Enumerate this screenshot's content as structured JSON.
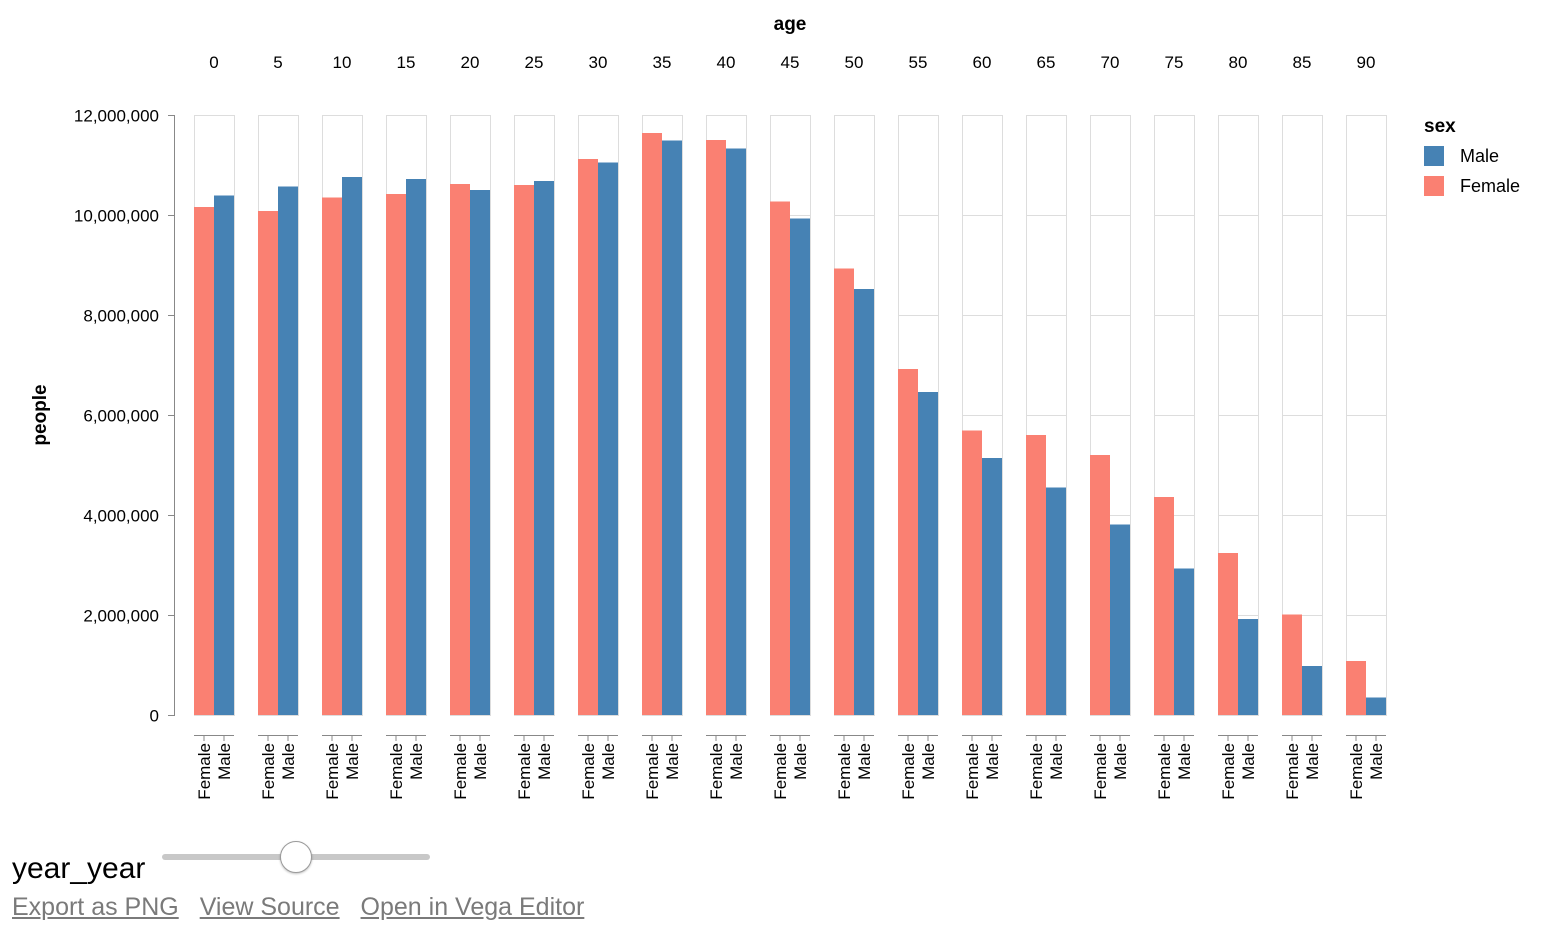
{
  "chart_data": {
    "type": "bar",
    "column_title": "age",
    "categories": [
      "0",
      "5",
      "10",
      "15",
      "20",
      "25",
      "30",
      "35",
      "40",
      "45",
      "50",
      "55",
      "60",
      "65",
      "70",
      "75",
      "80",
      "85",
      "90"
    ],
    "ylabel": "people",
    "ylim": [
      0,
      12000000
    ],
    "yticks": [
      0,
      2000000,
      4000000,
      6000000,
      8000000,
      10000000,
      12000000
    ],
    "grid": true,
    "subgroup_order": [
      "Female",
      "Male"
    ],
    "series": [
      {
        "name": "Female",
        "color": "#fa8072",
        "values": [
          10160000,
          10080000,
          10350000,
          10420000,
          10620000,
          10600000,
          11120000,
          11640000,
          11500000,
          10270000,
          8930000,
          6920000,
          5690000,
          5600000,
          5200000,
          4360000,
          3240000,
          2010000,
          1080000
        ]
      },
      {
        "name": "Male",
        "color": "#4682b4",
        "values": [
          10390000,
          10570000,
          10760000,
          10720000,
          10500000,
          10680000,
          11050000,
          11490000,
          11330000,
          9930000,
          8520000,
          6460000,
          5140000,
          4550000,
          3810000,
          2930000,
          1920000,
          980000,
          350000
        ]
      }
    ],
    "legend": {
      "title": "sex",
      "placement": "top-right",
      "items": [
        "Male",
        "Female"
      ]
    }
  },
  "controls": {
    "slider_label": "year_year",
    "slider_value_fraction": 0.5
  },
  "links": {
    "export": "Export as PNG",
    "source": "View Source",
    "editor": "Open in Vega Editor"
  }
}
